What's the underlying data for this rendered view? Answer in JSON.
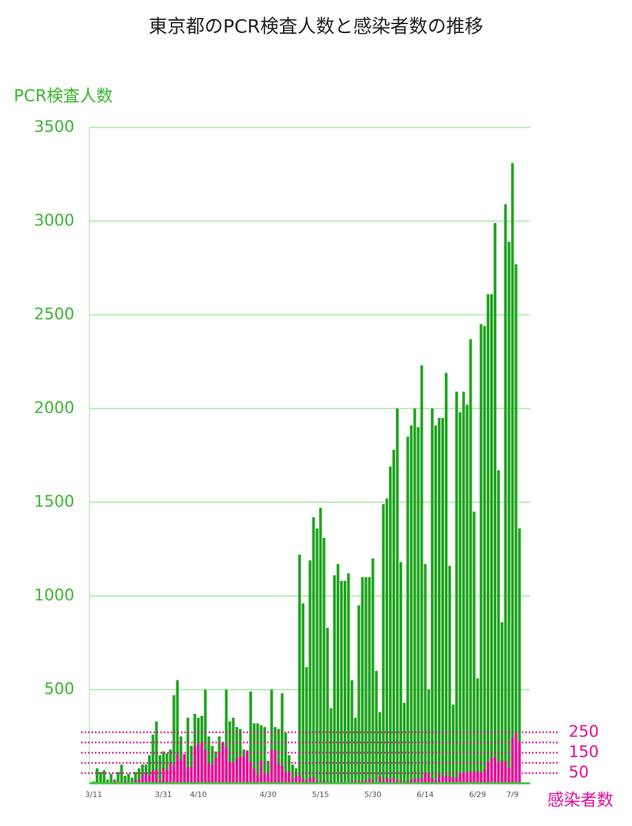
{
  "chart_data": {
    "type": "bar",
    "title": "東京都のPCR検査人数と感染者数の推移",
    "y_label": "PCR検査人数",
    "y2_label": "感染者数",
    "categories": [
      "3/11",
      null,
      null,
      null,
      null,
      null,
      null,
      null,
      null,
      null,
      null,
      null,
      null,
      null,
      null,
      null,
      null,
      null,
      null,
      null,
      "3/31",
      null,
      null,
      null,
      null,
      null,
      null,
      null,
      null,
      null,
      "4/10",
      null,
      null,
      null,
      null,
      null,
      null,
      null,
      null,
      null,
      null,
      null,
      null,
      null,
      null,
      null,
      null,
      null,
      null,
      null,
      "4/30",
      null,
      null,
      null,
      null,
      null,
      null,
      null,
      null,
      null,
      null,
      null,
      null,
      null,
      null,
      "5/15",
      null,
      null,
      null,
      null,
      null,
      null,
      null,
      null,
      null,
      null,
      null,
      null,
      null,
      null,
      "5/30",
      null,
      null,
      null,
      null,
      null,
      null,
      null,
      null,
      null,
      null,
      null,
      null,
      null,
      null,
      "6/14",
      null,
      null,
      null,
      null,
      null,
      null,
      null,
      null,
      null,
      null,
      null,
      null,
      null,
      null,
      "6/29",
      null,
      null,
      null,
      null,
      null,
      null,
      null,
      null,
      null,
      "7/9",
      null,
      null
    ],
    "series": [
      {
        "name": "PCR検査人数",
        "color": "#1fa51f",
        "values": [
          10,
          80,
          60,
          70,
          20,
          50,
          20,
          60,
          100,
          40,
          50,
          30,
          60,
          80,
          100,
          100,
          150,
          260,
          330,
          150,
          170,
          160,
          180,
          470,
          550,
          250,
          150,
          350,
          200,
          370,
          350,
          360,
          500,
          250,
          200,
          170,
          250,
          170,
          500,
          330,
          350,
          300,
          290,
          180,
          170,
          490,
          320,
          320,
          310,
          300,
          120,
          500,
          300,
          290,
          480,
          270,
          150,
          100,
          80,
          1220,
          960,
          620,
          1190,
          1420,
          1360,
          1470,
          1310,
          830,
          400,
          1110,
          1170,
          1080,
          1080,
          1120,
          550,
          350,
          950,
          1100,
          1100,
          1100,
          1200,
          600,
          380,
          1490,
          1520,
          1690,
          1780,
          2000,
          1180,
          430,
          1850,
          1910,
          2000,
          1900,
          2230,
          1170,
          500,
          2000,
          1910,
          1950,
          1950,
          2190,
          1160,
          420,
          2090,
          1980,
          2090,
          2020,
          2370,
          1450,
          560,
          2450,
          2440,
          2610,
          2610,
          2990,
          1670,
          860,
          3090,
          2890,
          3310,
          2770,
          1360
        ]
      },
      {
        "name": "感染者数",
        "color": "#e8129c",
        "axis": "y2",
        "values": [
          5,
          6,
          3,
          5,
          3,
          1,
          12,
          9,
          3,
          10,
          7,
          3,
          16,
          17,
          41,
          47,
          40,
          63,
          68,
          13,
          78,
          66,
          97,
          89,
          143,
          118,
          143,
          79,
          80,
          181,
          189,
          197,
          166,
          94,
          91,
          126,
          149,
          201,
          181,
          107,
          102,
          123,
          132,
          134,
          161,
          103,
          72,
          39,
          112,
          47,
          46,
          165,
          160,
          91,
          87,
          58,
          57,
          23,
          39,
          36,
          22,
          15,
          28,
          30,
          10,
          9,
          14,
          5,
          10,
          5,
          5,
          11,
          3,
          2,
          14,
          8,
          10,
          11,
          15,
          22,
          14,
          5,
          34,
          12,
          28,
          20,
          26,
          14,
          13,
          8,
          12,
          18,
          22,
          25,
          24,
          47,
          48,
          27,
          16,
          41,
          35,
          39,
          35,
          29,
          31,
          48,
          55,
          54,
          57,
          60,
          58,
          54,
          67,
          107,
          124,
          131,
          102,
          111,
          106,
          75,
          224,
          243,
          206
        ]
      }
    ],
    "ylim": [
      0,
      3500
    ],
    "yticks": [
      500,
      1000,
      1500,
      2000,
      2500,
      3000,
      3500
    ],
    "y2lim": [
      0,
      3216
    ],
    "y2ticks": [
      50,
      150,
      250
    ],
    "y2_gridlines": [
      50,
      100,
      150,
      200,
      250
    ],
    "grid": true
  }
}
